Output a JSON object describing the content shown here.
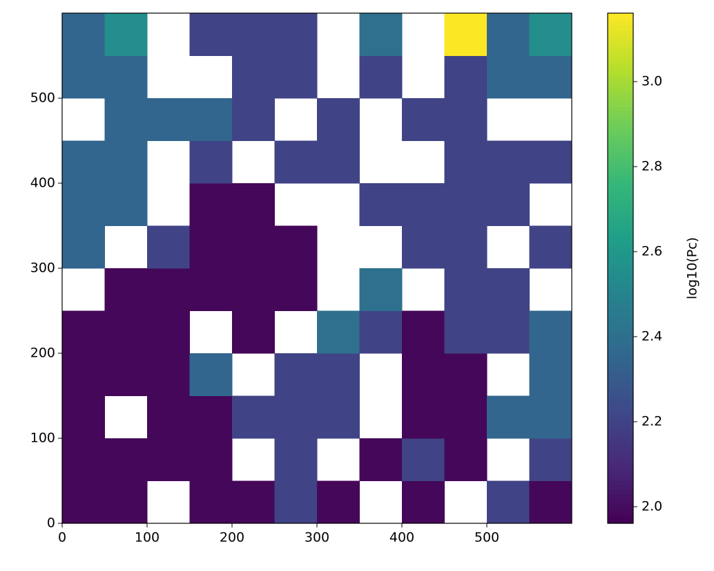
{
  "chart_data": {
    "type": "heatmap",
    "colormap": "viridis",
    "xlim": [
      0,
      600
    ],
    "ylim": [
      0,
      600
    ],
    "xticks": [
      0,
      100,
      200,
      300,
      400,
      500
    ],
    "yticks": [
      0,
      100,
      200,
      300,
      400,
      500
    ],
    "z": [
      [
        1.98,
        1.98,
        null,
        1.98,
        1.98,
        2.2,
        1.98,
        null,
        1.98,
        null,
        2.2,
        1.98
      ],
      [
        1.98,
        1.98,
        1.98,
        1.98,
        null,
        2.2,
        null,
        1.98,
        2.2,
        1.98,
        null,
        2.2
      ],
      [
        1.98,
        null,
        1.98,
        1.98,
        2.2,
        2.2,
        2.2,
        null,
        1.98,
        1.98,
        2.35,
        2.35
      ],
      [
        1.98,
        1.98,
        1.98,
        2.35,
        null,
        2.2,
        2.2,
        null,
        1.98,
        1.98,
        null,
        2.35
      ],
      [
        1.98,
        1.98,
        1.98,
        null,
        1.98,
        null,
        2.4,
        2.2,
        1.98,
        2.2,
        2.2,
        2.35
      ],
      [
        null,
        1.98,
        1.98,
        1.98,
        1.98,
        1.98,
        null,
        2.4,
        null,
        2.2,
        2.2,
        null
      ],
      [
        2.35,
        null,
        2.2,
        1.98,
        1.98,
        1.98,
        null,
        null,
        2.2,
        2.2,
        null,
        2.2
      ],
      [
        2.35,
        2.35,
        null,
        1.98,
        1.98,
        null,
        null,
        2.2,
        2.2,
        2.2,
        2.2,
        null
      ],
      [
        2.35,
        2.35,
        null,
        2.2,
        null,
        2.2,
        2.2,
        null,
        null,
        2.2,
        2.2,
        2.2
      ],
      [
        null,
        2.35,
        2.35,
        2.35,
        2.2,
        null,
        2.2,
        null,
        2.2,
        2.2,
        null,
        null
      ],
      [
        2.35,
        2.35,
        null,
        null,
        2.2,
        2.2,
        null,
        2.2,
        null,
        2.2,
        2.35,
        2.35
      ],
      [
        2.35,
        2.55,
        null,
        2.2,
        2.2,
        2.2,
        null,
        2.4,
        null,
        3.16,
        2.35,
        2.55
      ]
    ],
    "colorbar": {
      "label": "log10(Pc)",
      "lim": [
        1.961,
        3.161
      ],
      "ticks": [
        {
          "value": 2,
          "label": "2.0"
        },
        2.2,
        2.4,
        2.6,
        2.8,
        {
          "value": 3,
          "label": "3.0"
        }
      ]
    }
  }
}
